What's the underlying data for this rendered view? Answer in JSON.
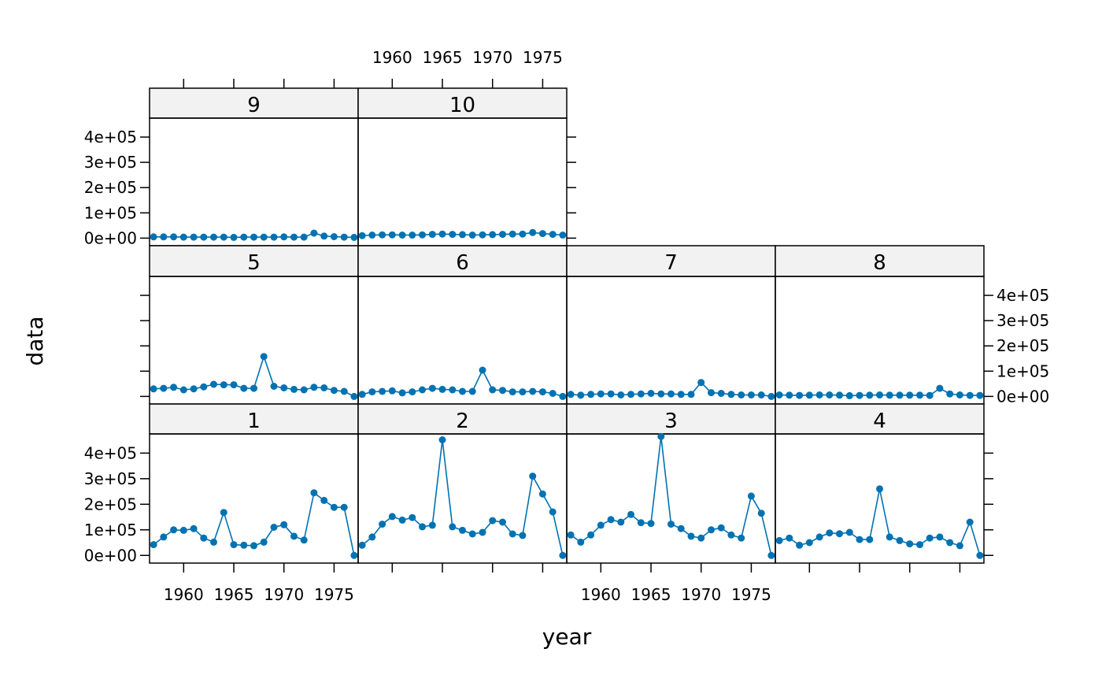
{
  "chart_data": {
    "type": "line",
    "xlabel": "year",
    "ylabel": "data",
    "x_ticks": [
      "1960",
      "1965",
      "1970",
      "1975"
    ],
    "y_ticks": [
      "0e+00",
      "1e+05",
      "2e+05",
      "3e+05",
      "4e+05"
    ],
    "ylim": [
      -30000,
      475000
    ],
    "xlim": [
      1956.6,
      1977.4
    ],
    "grid": false,
    "colors": {
      "line": "#0072b2",
      "strip_bg": "#f2f2f2",
      "frame": "#000000"
    },
    "x": [
      1957,
      1958,
      1959,
      1960,
      1961,
      1962,
      1963,
      1964,
      1965,
      1966,
      1967,
      1968,
      1969,
      1970,
      1971,
      1972,
      1973,
      1974,
      1975,
      1976,
      1977
    ],
    "panels": [
      {
        "label": "9",
        "values": [
          5000,
          5000,
          5000,
          4000,
          4000,
          4000,
          4000,
          4000,
          3000,
          4000,
          4000,
          4000,
          4000,
          5000,
          4000,
          4000,
          20000,
          8000,
          6000,
          4000,
          3000
        ]
      },
      {
        "label": "10",
        "values": [
          10000,
          12000,
          13000,
          13000,
          12000,
          12000,
          13000,
          15000,
          16000,
          15000,
          14000,
          12000,
          13000,
          14000,
          15000,
          16000,
          16000,
          22000,
          18000,
          15000,
          12000
        ]
      },
      {
        "label": "5",
        "values": [
          30000,
          32000,
          36000,
          26000,
          30000,
          38000,
          48000,
          46000,
          46000,
          32000,
          32000,
          158000,
          40000,
          34000,
          28000,
          26000,
          36000,
          34000,
          24000,
          20000,
          0
        ]
      },
      {
        "label": "6",
        "values": [
          8000,
          18000,
          20000,
          22000,
          14000,
          18000,
          26000,
          32000,
          28000,
          26000,
          20000,
          20000,
          104000,
          26000,
          24000,
          18000,
          18000,
          20000,
          18000,
          12000,
          0
        ]
      },
      {
        "label": "7",
        "values": [
          8000,
          5000,
          8000,
          10000,
          10000,
          6000,
          8000,
          10000,
          12000,
          10000,
          10000,
          8000,
          8000,
          55000,
          15000,
          12000,
          8000,
          6000,
          6000,
          6000,
          0
        ]
      },
      {
        "label": "8",
        "values": [
          6000,
          5000,
          4000,
          5000,
          6000,
          6000,
          5000,
          3000,
          4000,
          5000,
          6000,
          5000,
          5000,
          5000,
          5000,
          4000,
          32000,
          10000,
          6000,
          4000,
          4000
        ]
      },
      {
        "label": "1",
        "values": [
          42000,
          72000,
          100000,
          98000,
          105000,
          68000,
          52000,
          168000,
          42000,
          40000,
          38000,
          52000,
          110000,
          120000,
          75000,
          60000,
          245000,
          215000,
          188000,
          188000,
          0
        ]
      },
      {
        "label": "2",
        "values": [
          40000,
          72000,
          122000,
          152000,
          138000,
          148000,
          112000,
          118000,
          452000,
          112000,
          98000,
          84000,
          90000,
          136000,
          130000,
          84000,
          78000,
          310000,
          240000,
          170000,
          0
        ]
      },
      {
        "label": "3",
        "values": [
          80000,
          52000,
          80000,
          118000,
          140000,
          130000,
          160000,
          128000,
          125000,
          465000,
          122000,
          105000,
          75000,
          68000,
          100000,
          108000,
          80000,
          68000,
          232000,
          165000,
          0
        ]
      },
      {
        "label": "4",
        "values": [
          58000,
          68000,
          40000,
          50000,
          72000,
          88000,
          85000,
          90000,
          62000,
          62000,
          260000,
          72000,
          58000,
          45000,
          42000,
          68000,
          72000,
          50000,
          38000,
          130000,
          0
        ]
      }
    ]
  }
}
